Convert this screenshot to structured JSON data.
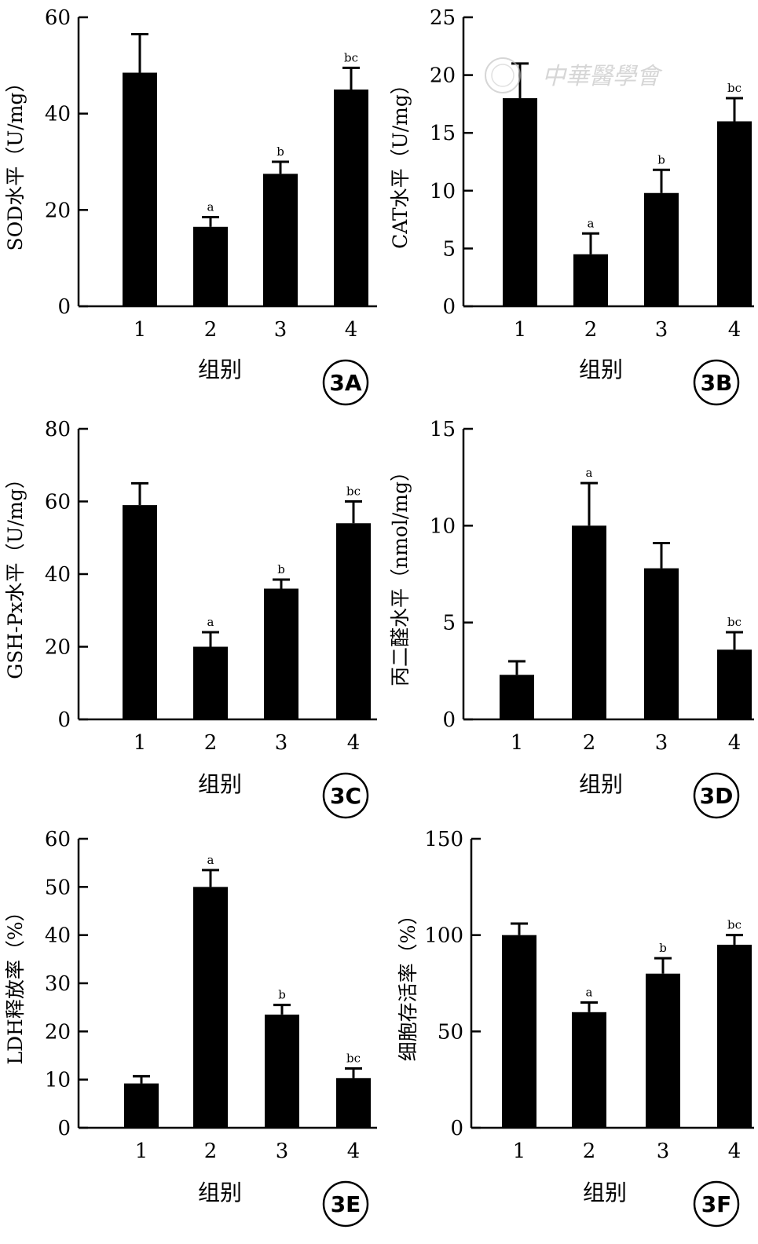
{
  "watermark": {
    "text": "中華醫學會"
  },
  "chart_data": [
    {
      "id": "3A",
      "type": "bar",
      "categories": [
        "1",
        "2",
        "3",
        "4"
      ],
      "values": [
        48.5,
        16.5,
        27.5,
        45
      ],
      "errors": [
        8,
        2,
        2.5,
        4.5
      ],
      "sig": [
        "",
        "a",
        "b",
        "bc"
      ],
      "ylabel": "SOD水平（U/mg）",
      "xlabel": "组别",
      "ylim": [
        0,
        60
      ],
      "yticks": [
        0,
        20,
        40,
        60
      ],
      "badge": "3A"
    },
    {
      "id": "3B",
      "type": "bar",
      "categories": [
        "1",
        "2",
        "3",
        "4"
      ],
      "values": [
        18,
        4.5,
        9.8,
        16
      ],
      "errors": [
        3,
        1.8,
        2,
        2
      ],
      "sig": [
        "",
        "a",
        "b",
        "bc"
      ],
      "ylabel": "CAT水平（U/mg）",
      "xlabel": "组别",
      "ylim": [
        0,
        25
      ],
      "yticks": [
        0,
        5,
        10,
        15,
        20,
        25
      ],
      "badge": "3B"
    },
    {
      "id": "3C",
      "type": "bar",
      "categories": [
        "1",
        "2",
        "3",
        "4"
      ],
      "values": [
        59,
        20,
        36,
        54
      ],
      "errors": [
        6,
        4,
        2.5,
        6
      ],
      "sig": [
        "",
        "a",
        "b",
        "bc"
      ],
      "ylabel": "GSH-Px水平（U/mg）",
      "xlabel": "组别",
      "ylim": [
        0,
        80
      ],
      "yticks": [
        0,
        20,
        40,
        60,
        80
      ],
      "badge": "3C"
    },
    {
      "id": "3D",
      "type": "bar",
      "categories": [
        "1",
        "2",
        "3",
        "4"
      ],
      "values": [
        2.3,
        10,
        7.8,
        3.6
      ],
      "errors": [
        0.7,
        2.2,
        1.3,
        0.9
      ],
      "sig": [
        "",
        "a",
        "",
        "bc"
      ],
      "ylabel": "丙二醛水平（nmol/mg）",
      "xlabel": "组别",
      "ylim": [
        0,
        15
      ],
      "yticks": [
        0,
        5,
        10,
        15
      ],
      "badge": "3D"
    },
    {
      "id": "3E",
      "type": "bar",
      "categories": [
        "1",
        "2",
        "3",
        "4"
      ],
      "values": [
        9.2,
        50,
        23.5,
        10.3
      ],
      "errors": [
        1.5,
        3.5,
        2,
        2
      ],
      "sig": [
        "",
        "a",
        "b",
        "bc"
      ],
      "ylabel": "LDH释放率（%）",
      "xlabel": "组别",
      "ylim": [
        0,
        60
      ],
      "yticks": [
        0,
        10,
        20,
        30,
        40,
        50,
        60
      ],
      "badge": "3E"
    },
    {
      "id": "3F",
      "type": "bar",
      "categories": [
        "1",
        "2",
        "3",
        "4"
      ],
      "values": [
        100,
        60,
        80,
        95
      ],
      "errors": [
        6,
        5,
        8,
        5
      ],
      "sig": [
        "",
        "a",
        "b",
        "bc"
      ],
      "ylabel": "细胞存活率（%）",
      "xlabel": "组别",
      "ylim": [
        0,
        150
      ],
      "yticks": [
        0,
        50,
        100,
        150
      ],
      "badge": "3F"
    }
  ]
}
